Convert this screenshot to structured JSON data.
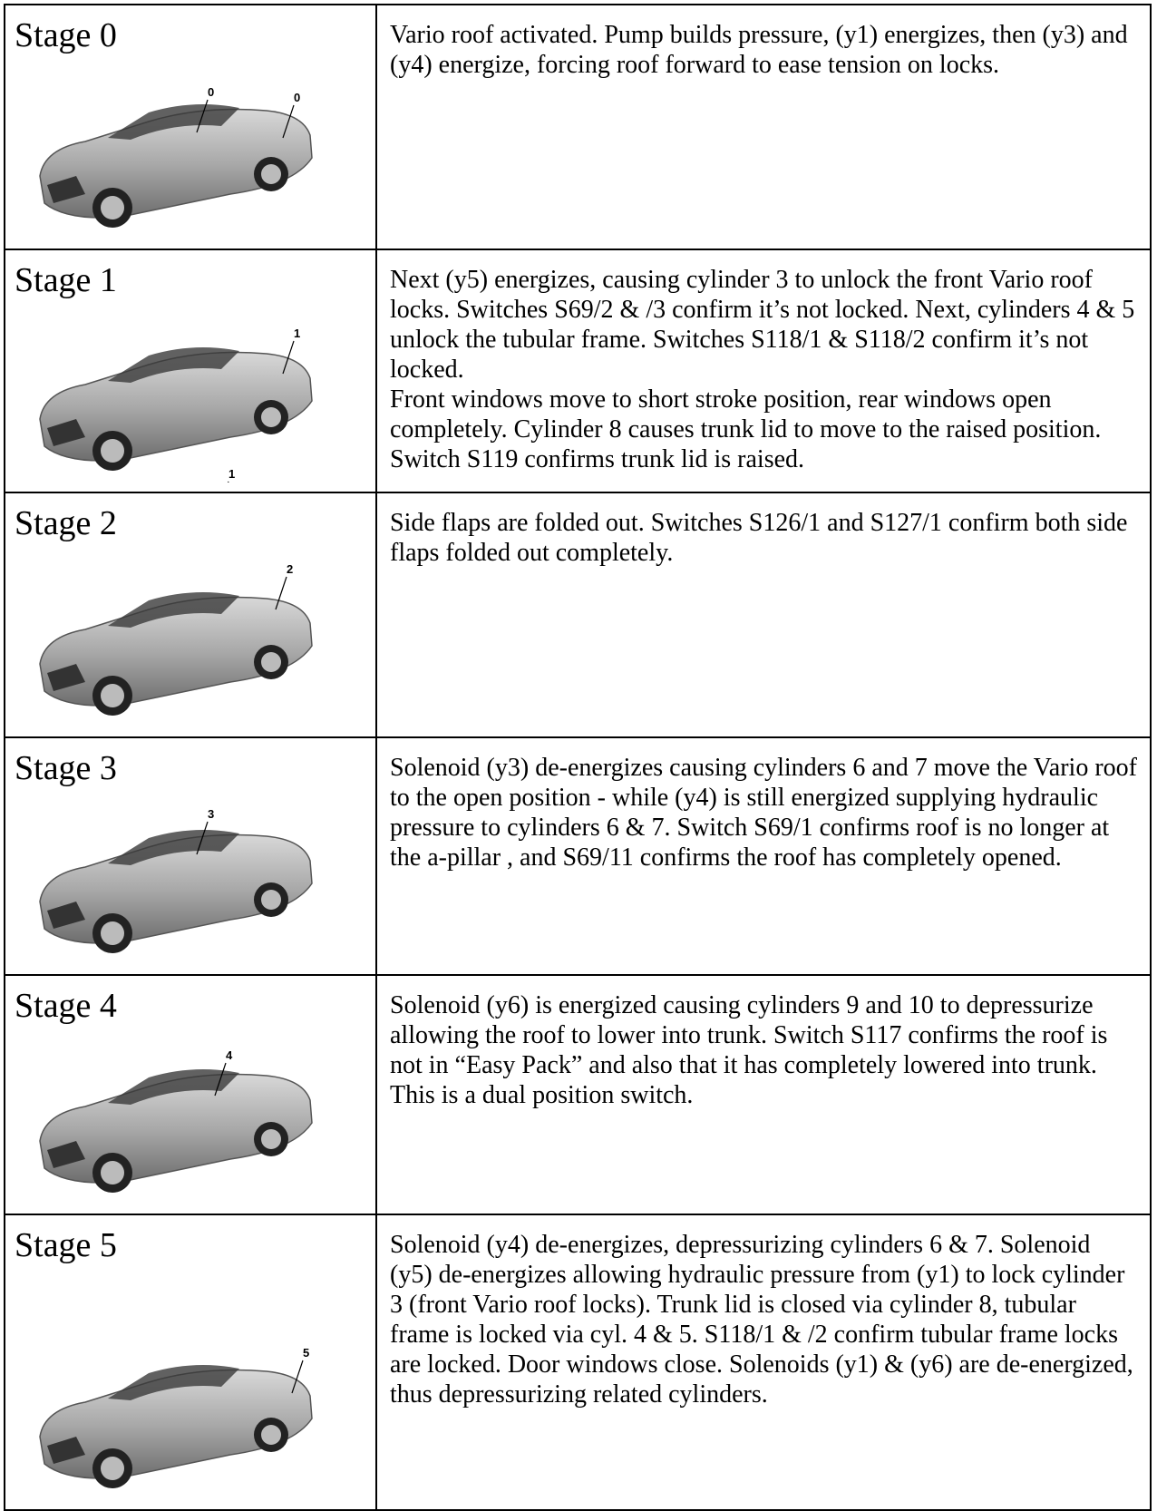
{
  "stages": [
    {
      "label": "Stage 0",
      "callouts": [
        "0",
        "0"
      ],
      "description": [
        "Vario roof activated.  Pump builds pressure, (y1) energizes, then (y3) and (y4) energize, forcing roof forward to ease tension on locks."
      ]
    },
    {
      "label": "Stage 1",
      "callouts": [
        "1",
        "1"
      ],
      "description": [
        "Next (y5) energizes, causing cylinder 3 to unlock the front Vario roof locks. Switches S69/2 & /3 confirm it’s not locked. Next, cylinders 4 & 5 unlock the tubular frame. Switches S118/1 & S118/2 confirm it’s not locked.",
        "Front windows move to short stroke position, rear windows open completely.  Cylinder 8 causes trunk lid to move to the raised position. Switch S119 confirms trunk lid is raised."
      ]
    },
    {
      "label": "Stage 2",
      "callouts": [
        "2"
      ],
      "description": [
        "Side flaps are folded out. Switches S126/1 and S127/1 confirm both side flaps folded out completely."
      ]
    },
    {
      "label": "Stage 3",
      "callouts": [
        "3"
      ],
      "description": [
        "Solenoid (y3) de-energizes causing cylinders 6 and 7 move the Vario roof to the open position - while (y4) is still energized supplying hydraulic pressure to cylinders 6 & 7.  Switch S69/1 confirms roof is no longer at the a-pillar , and S69/11 confirms the roof has completely opened."
      ]
    },
    {
      "label": "Stage 4",
      "callouts": [
        "4"
      ],
      "description": [
        "Solenoid (y6) is energized causing cylinders 9 and 10 to depressurize allowing the roof to lower into trunk.  Switch S117 confirms the roof is not in “Easy Pack” and also that it has completely lowered into trunk. This is a dual position switch."
      ]
    },
    {
      "label": "Stage 5",
      "callouts": [
        "5"
      ],
      "description": [
        "Solenoid (y4) de-energizes, depressurizing cylinders 6 & 7.  Solenoid (y5) de-energizes allowing hydraulic pressure from (y1) to lock cylinder 3 (front Vario roof locks). Trunk lid is closed via cylinder 8, tubular frame is locked via cyl. 4 & 5.  S118/1 & /2 confirm tubular frame locks are locked.  Door windows close.  Solenoids (y1) & (y6) are de-energized, thus depressurizing related cylinders."
      ]
    }
  ]
}
